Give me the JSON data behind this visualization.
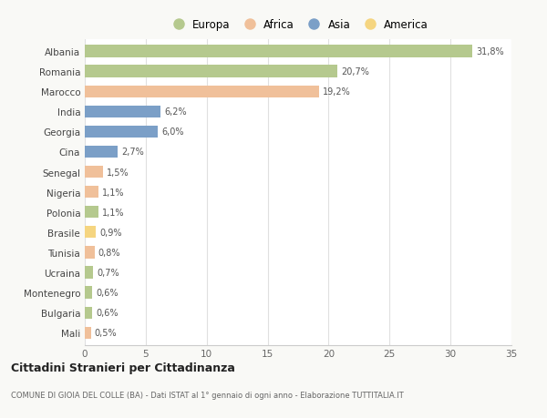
{
  "countries": [
    "Albania",
    "Romania",
    "Marocco",
    "India",
    "Georgia",
    "Cina",
    "Senegal",
    "Nigeria",
    "Polonia",
    "Brasile",
    "Tunisia",
    "Ucraina",
    "Montenegro",
    "Bulgaria",
    "Mali"
  ],
  "values": [
    31.8,
    20.7,
    19.2,
    6.2,
    6.0,
    2.7,
    1.5,
    1.1,
    1.1,
    0.9,
    0.8,
    0.7,
    0.6,
    0.6,
    0.5
  ],
  "labels": [
    "31,8%",
    "20,7%",
    "19,2%",
    "6,2%",
    "6,0%",
    "2,7%",
    "1,5%",
    "1,1%",
    "1,1%",
    "0,9%",
    "0,8%",
    "0,7%",
    "0,6%",
    "0,6%",
    "0,5%"
  ],
  "colors": [
    "#b5c98e",
    "#b5c98e",
    "#f0c09a",
    "#7b9fc7",
    "#7b9fc7",
    "#7b9fc7",
    "#f0c09a",
    "#f0c09a",
    "#b5c98e",
    "#f5d580",
    "#f0c09a",
    "#b5c98e",
    "#b5c98e",
    "#b5c98e",
    "#f0c09a"
  ],
  "legend_labels": [
    "Europa",
    "Africa",
    "Asia",
    "America"
  ],
  "legend_colors": [
    "#b5c98e",
    "#f0c09a",
    "#7b9fc7",
    "#f5d580"
  ],
  "title": "Cittadini Stranieri per Cittadinanza",
  "subtitle": "COMUNE DI GIOIA DEL COLLE (BA) - Dati ISTAT al 1° gennaio di ogni anno - Elaborazione TUTTITALIA.IT",
  "xlim": [
    0,
    35
  ],
  "xticks": [
    0,
    5,
    10,
    15,
    20,
    25,
    30,
    35
  ],
  "background_color": "#f9f9f6",
  "plot_background": "#ffffff",
  "grid_color": "#e0e0e0"
}
